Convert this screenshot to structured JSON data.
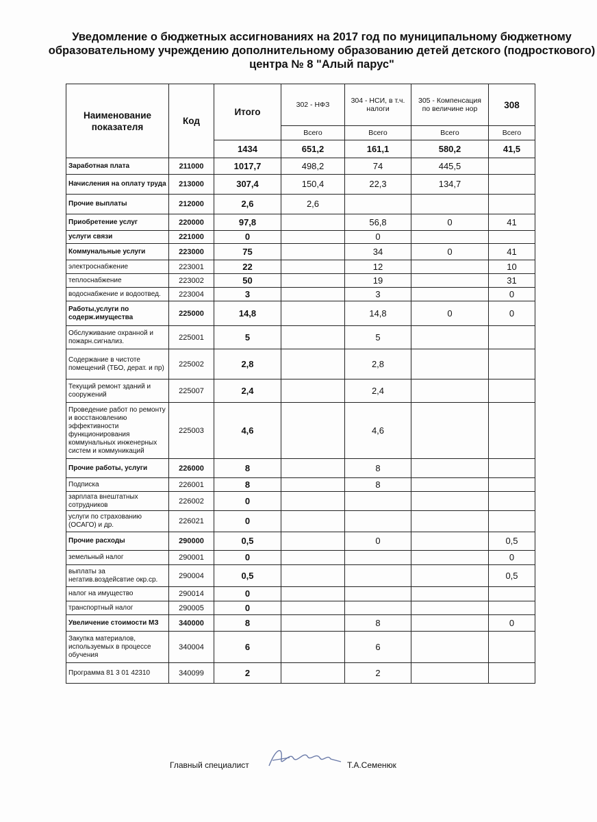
{
  "title": "Уведомление о бюджетных ассигнованиях на 2017 год по муниципальному бюджетному  образовательному учреждению дополнительному образованию детей  детского (подросткового) центра № 8 \"Алый парус\"",
  "header": {
    "name": "Наименование показателя",
    "code": "Код",
    "total": "Итого",
    "c302": "302 - НФЗ",
    "c304": "304  - НСИ, в т.ч. налоги",
    "c305": "305 - Компенсация по величине нор",
    "c308": "308",
    "sub": "Всего"
  },
  "totals": [
    "1434",
    "651,2",
    "161,1",
    "580,2",
    "41,5"
  ],
  "rows": [
    {
      "name": "Заработная плата",
      "code": "211000",
      "total": "1017,7",
      "v": [
        "498,2",
        "74",
        "445,5",
        ""
      ],
      "bold": true
    },
    {
      "name": "Начисления на оплату труда",
      "code": "213000",
      "total": "307,4",
      "v": [
        "150,4",
        "22,3",
        "134,7",
        ""
      ],
      "bold": true
    },
    {
      "name": "Прочие выплаты",
      "code": "212000",
      "total": "2,6",
      "v": [
        "2,6",
        "",
        "",
        ""
      ],
      "bold": true
    },
    {
      "name": "Приобретение услуг",
      "code": "220000",
      "total": "97,8",
      "v": [
        "",
        "56,8",
        "0",
        "41"
      ],
      "bold": true
    },
    {
      "name": "услуги связи",
      "code": "221000",
      "total": "0",
      "v": [
        "",
        "0",
        "",
        ""
      ],
      "bold": true
    },
    {
      "name": "Коммунальные услуги",
      "code": "223000",
      "total": "75",
      "v": [
        "",
        "34",
        "0",
        "41"
      ],
      "bold": true
    },
    {
      "name": "электроснабжение",
      "code": "223001",
      "total": "22",
      "v": [
        "",
        "12",
        "",
        "10"
      ],
      "bold": false
    },
    {
      "name": "теплоснабжение",
      "code": "223002",
      "total": "50",
      "v": [
        "",
        "19",
        "",
        "31"
      ],
      "bold": false
    },
    {
      "name": "водоснабжение и водоотвед.",
      "code": "223004",
      "total": "3",
      "v": [
        "",
        "3",
        "",
        "0"
      ],
      "bold": false
    },
    {
      "name": "Работы,услуги по содерж.имущества",
      "code": "225000",
      "total": "14,8",
      "v": [
        "",
        "14,8",
        "0",
        "0"
      ],
      "bold": true
    },
    {
      "name": "Обслуживание охранной и пожарн.сигнализ.",
      "code": "225001",
      "total": "5",
      "v": [
        "",
        "5",
        "",
        ""
      ],
      "bold": false
    },
    {
      "name": "Содержание в чистоте помещений (ТБО, дерат. и пр)",
      "code": "225002",
      "total": "2,8",
      "v": [
        "",
        "2,8",
        "",
        ""
      ],
      "bold": false
    },
    {
      "name": "Текущий ремонт зданий и сооружений",
      "code": "225007",
      "total": "2,4",
      "v": [
        "",
        "2,4",
        "",
        ""
      ],
      "bold": false
    },
    {
      "name": "Проведение работ по ремонту и восстановлению эффективности функционирования коммунальных инженерных систем и коммуникаций",
      "code": "225003",
      "total": "4,6",
      "v": [
        "",
        "4,6",
        "",
        ""
      ],
      "bold": false
    },
    {
      "name": "Прочие работы, услуги",
      "code": "226000",
      "total": "8",
      "v": [
        "",
        "8",
        "",
        ""
      ],
      "bold": true
    },
    {
      "name": "Подписка",
      "code": "226001",
      "total": "8",
      "v": [
        "",
        "8",
        "",
        ""
      ],
      "bold": false
    },
    {
      "name": "зарплата внештатных сотрудников",
      "code": "226002",
      "total": "0",
      "v": [
        "",
        "",
        "",
        ""
      ],
      "bold": false
    },
    {
      "name": "услуги по страхованию (ОСАГО) и др.",
      "code": "226021",
      "total": "0",
      "v": [
        "",
        "",
        "",
        ""
      ],
      "bold": false
    },
    {
      "name": "Прочие расходы",
      "code": "290000",
      "total": "0,5",
      "v": [
        "",
        "0",
        "",
        "0,5"
      ],
      "bold": true
    },
    {
      "name": " земельный налог",
      "code": "290001",
      "total": "0",
      "v": [
        "",
        "",
        "",
        "0"
      ],
      "bold": false
    },
    {
      "name": "выплаты за негатив.воздейсвтие окр.ср.",
      "code": "290004",
      "total": "0,5",
      "v": [
        "",
        "",
        "",
        "0,5"
      ],
      "bold": false
    },
    {
      "name": "налог на имущество",
      "code": "290014",
      "total": "0",
      "v": [
        "",
        "",
        "",
        ""
      ],
      "bold": false
    },
    {
      "name": "транспортный налог",
      "code": "290005",
      "total": "0",
      "v": [
        "",
        "",
        "",
        ""
      ],
      "bold": false
    },
    {
      "name": "Увеличение стоимости МЗ",
      "code": "340000",
      "total": "8",
      "v": [
        "",
        "8",
        "",
        "0"
      ],
      "bold": true
    },
    {
      "name": "Закупка материалов, используемых в процессе обучения",
      "code": "340004",
      "total": "6",
      "v": [
        "",
        "6",
        "",
        ""
      ],
      "bold": false
    },
    {
      "name": "Программа 81 3 01 42310",
      "code": "340099",
      "total": "2",
      "v": [
        "",
        "2",
        "",
        ""
      ],
      "bold": false
    }
  ],
  "signature": {
    "position": "Главный специалист",
    "name": "Т.А.Семенюк"
  }
}
